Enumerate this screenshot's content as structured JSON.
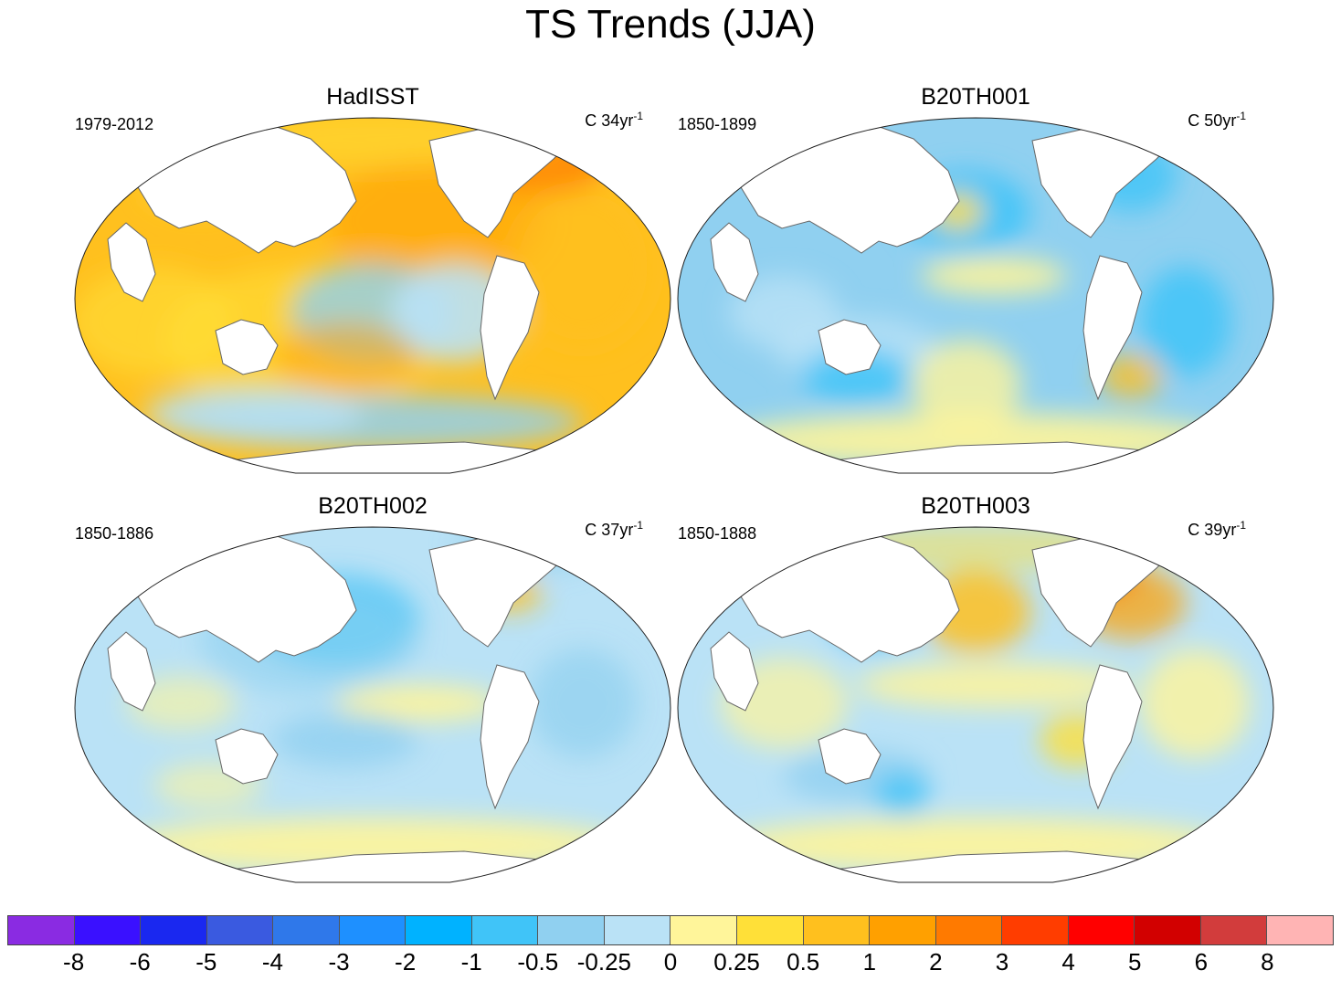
{
  "title": "TS Trends (JJA)",
  "unit_prefix": "C",
  "panels": [
    {
      "name": "HadISST",
      "period": "1979-2012",
      "years": "34",
      "unit_suffix": "yr",
      "unit_exp": "-1",
      "pattern": "warm"
    },
    {
      "name": "B20TH001",
      "period": "1850-1899",
      "years": "50",
      "unit_suffix": "yr",
      "unit_exp": "-1",
      "pattern": "cool"
    },
    {
      "name": "B20TH002",
      "period": "1850-1886",
      "years": "37",
      "unit_suffix": "yr",
      "unit_exp": "-1",
      "pattern": "cool2"
    },
    {
      "name": "B20TH003",
      "period": "1850-1888",
      "years": "39",
      "unit_suffix": "yr",
      "unit_exp": "-1",
      "pattern": "mixed"
    }
  ],
  "colorbar": {
    "labels": [
      "-8",
      "-6",
      "-5",
      "-4",
      "-3",
      "-2",
      "-1",
      "-0.5",
      "-0.25",
      "0",
      "0.25",
      "0.5",
      "1",
      "2",
      "3",
      "4",
      "5",
      "6",
      "8"
    ],
    "colors": [
      "#8a2be2",
      "#3a10ff",
      "#1a28f0",
      "#3a5ae0",
      "#2f78ea",
      "#1e90ff",
      "#00b2ff",
      "#40c4f8",
      "#90d0f0",
      "#bae2f6",
      "#fff59a",
      "#ffe038",
      "#ffc01e",
      "#ffa000",
      "#ff7a00",
      "#ff3d00",
      "#ff0000",
      "#d20000",
      "#d23c3c",
      "#ffb4b4"
    ]
  },
  "chart_data": {
    "type": "heatmap",
    "title": "TS Trends (JJA)",
    "projection": "Robinson, Pacific-centered",
    "unit": "C per record length",
    "levels": [
      -8,
      -6,
      -5,
      -4,
      -3,
      -2,
      -1,
      -0.5,
      -0.25,
      0,
      0.25,
      0.5,
      1,
      2,
      3,
      4,
      5,
      6,
      8
    ],
    "panels": [
      "HadISST",
      "B20TH001",
      "B20TH002",
      "B20TH003"
    ]
  }
}
